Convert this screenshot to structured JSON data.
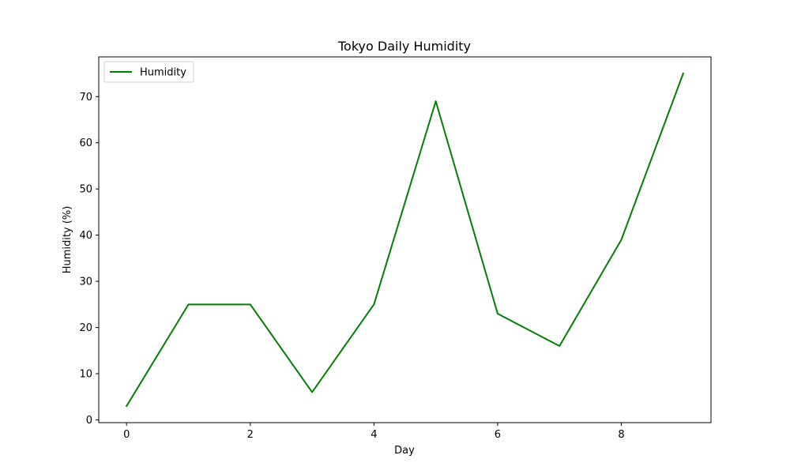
{
  "chart_data": {
    "type": "line",
    "title": "Tokyo Daily Humidity",
    "xlabel": "Day",
    "ylabel": "Humidity (%)",
    "x": [
      0,
      1,
      2,
      3,
      4,
      5,
      6,
      7,
      8,
      9
    ],
    "series": [
      {
        "name": "Humidity",
        "color": "#008000",
        "values": [
          3,
          25,
          25,
          6,
          25,
          69,
          23,
          16,
          39,
          75
        ]
      }
    ],
    "xlim": [
      -0.45,
      9.45
    ],
    "ylim": [
      -0.6,
      78.6
    ],
    "xticks": [
      0,
      2,
      4,
      6,
      8
    ],
    "yticks": [
      0,
      10,
      20,
      30,
      40,
      50,
      60,
      70
    ],
    "grid": false,
    "legend_position": "top-left"
  }
}
